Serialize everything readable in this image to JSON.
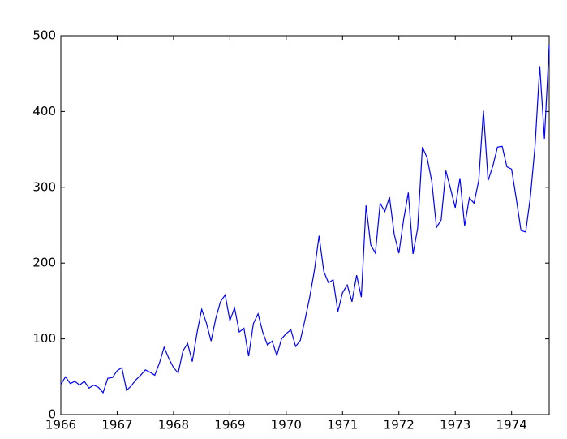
{
  "chart_data": {
    "type": "line",
    "x": [
      1966,
      1966.083,
      1966.167,
      1966.25,
      1966.333,
      1966.417,
      1966.5,
      1966.583,
      1966.667,
      1966.75,
      1966.833,
      1966.917,
      1967,
      1967.083,
      1967.167,
      1967.25,
      1967.333,
      1967.417,
      1967.5,
      1967.583,
      1967.667,
      1967.75,
      1967.833,
      1967.917,
      1968,
      1968.083,
      1968.167,
      1968.25,
      1968.333,
      1968.417,
      1968.5,
      1968.583,
      1968.667,
      1968.75,
      1968.833,
      1968.917,
      1969,
      1969.083,
      1969.167,
      1969.25,
      1969.333,
      1969.417,
      1969.5,
      1969.583,
      1969.667,
      1969.75,
      1969.833,
      1969.917,
      1970,
      1970.083,
      1970.167,
      1970.25,
      1970.333,
      1970.417,
      1970.5,
      1970.583,
      1970.667,
      1970.75,
      1970.833,
      1970.917,
      1971,
      1971.083,
      1971.167,
      1971.25,
      1971.333,
      1971.417,
      1971.5,
      1971.583,
      1971.667,
      1971.75,
      1971.833,
      1971.917,
      1972,
      1972.083,
      1972.167,
      1972.25,
      1972.333,
      1972.417,
      1972.5,
      1972.583,
      1972.667,
      1972.75,
      1972.833,
      1972.917,
      1973,
      1973.083,
      1973.167,
      1973.25,
      1973.333,
      1973.417,
      1973.5,
      1973.583,
      1973.667,
      1973.75,
      1973.833,
      1973.917,
      1974,
      1974.083,
      1974.167,
      1974.25,
      1974.333,
      1974.417,
      1974.5,
      1974.583,
      1974.667
    ],
    "series": [
      {
        "color": "#0000ff",
        "values": [
          40,
          50,
          41,
          44,
          39,
          44,
          35,
          39,
          36,
          29,
          48,
          49,
          58,
          62,
          32,
          38,
          46,
          52,
          59,
          56,
          52,
          68,
          89,
          74,
          62,
          55,
          84,
          94,
          70,
          108,
          139,
          121,
          97,
          127,
          149,
          158,
          124,
          141,
          109,
          114,
          77,
          120,
          133,
          109,
          92,
          97,
          78,
          100,
          107,
          112,
          90,
          98,
          125,
          155,
          190,
          236,
          189,
          174,
          178,
          136,
          161,
          171,
          149,
          184,
          155,
          276,
          224,
          213,
          279,
          268,
          287,
          238,
          213,
          257,
          293,
          212,
          246,
          353,
          339,
          308,
          247,
          257,
          322,
          298,
          273,
          312,
          249,
          286,
          279,
          309,
          401,
          309,
          328,
          353,
          354,
          327,
          324,
          285,
          243,
          241,
          287,
          355,
          460,
          364,
          487
        ]
      }
    ],
    "xlim": [
      1966,
      1974.667
    ],
    "xticks": [
      1966,
      1967,
      1968,
      1969,
      1970,
      1971,
      1972,
      1973,
      1974
    ],
    "ylim": [
      0,
      500
    ],
    "yticks": [
      0,
      100,
      200,
      300,
      400,
      500
    ]
  }
}
